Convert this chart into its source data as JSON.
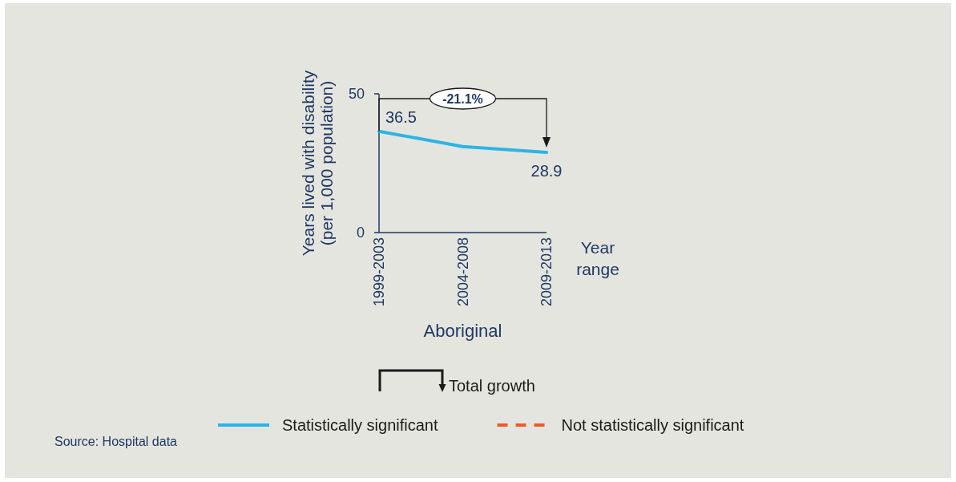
{
  "chart_data": {
    "type": "line",
    "title": "Aboriginal",
    "xlabel": "Year range",
    "ylabel": "Years lived with disability (per 1,000 population)",
    "categories": [
      "1999-2003",
      "2004-2008",
      "2009-2013"
    ],
    "series": [
      {
        "name": "Statistically significant",
        "color": "#2bb5e6",
        "values": [
          36.5,
          31,
          28.9
        ],
        "value_labels": [
          "36.5",
          null,
          "28.9"
        ]
      },
      {
        "name": "Not statistically significant",
        "color": "#ea5b2a",
        "line_style": "dashed",
        "values": [
          null,
          null,
          null
        ]
      }
    ],
    "ylim": [
      0,
      50
    ],
    "yticks": [
      0,
      50
    ],
    "legend": "bottom",
    "annotations": [
      "-21.1%",
      "Total growth",
      "Source: Hospital data"
    ]
  }
}
